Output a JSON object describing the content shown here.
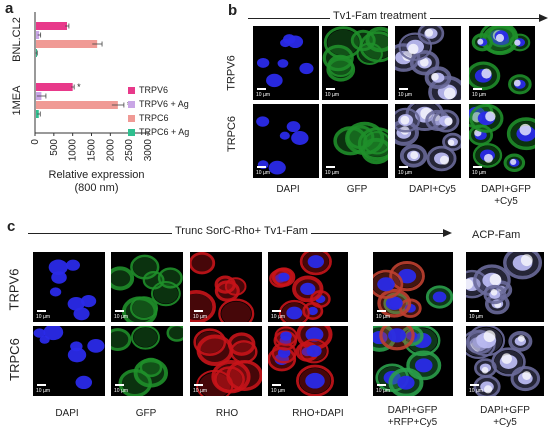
{
  "panels": {
    "a": "a",
    "b": "b",
    "c": "c"
  },
  "panel_b": {
    "arrow_text": "Tv1-Fam treatment",
    "rows": [
      "TRPV6",
      "TRPC6"
    ],
    "columns": [
      "DAPI",
      "GFP",
      "DAPI+Cy5",
      "DAPI+GFP\n+Cy5"
    ],
    "scale_text": "10 µm"
  },
  "panel_c": {
    "arrow_text": "Trunc SorC-Rho+ Tv1-Fam",
    "side_title": "ACP-Fam",
    "rows": [
      "TRPV6",
      "TRPC6"
    ],
    "columns": [
      "DAPI",
      "GFP",
      "RHO",
      "RHO+DAPI",
      "DAPI+GFP\n+RFP+Cy5",
      "DAPI+GFP\n+Cy5"
    ],
    "scale_text": "10 µm"
  },
  "colors": {
    "TRPV6": "#e8398a",
    "TRPV6 + Ag": "#c9a6e6",
    "TRPC6": "#f09a95",
    "TRPC6 + Ag": "#2fbf8f"
  },
  "chart_data": {
    "type": "bar",
    "orientation": "horizontal",
    "groups": [
      "BNL.CL2",
      "1MEA"
    ],
    "series": [
      {
        "name": "TRPV6",
        "values": [
          850,
          1000
        ]
      },
      {
        "name": "TRPV6 + Ag",
        "values": [
          110,
          170
        ]
      },
      {
        "name": "TRPC6",
        "values": [
          1650,
          2200
        ]
      },
      {
        "name": "TRPC6 + Ag",
        "values": [
          40,
          100
        ]
      }
    ],
    "error": [
      [
        50,
        40,
        130,
        20
      ],
      [
        40,
        120,
        160,
        40
      ]
    ],
    "significance": [
      [
        "",
        "",
        "",
        ""
      ],
      [
        "*",
        "",
        "*",
        ""
      ]
    ],
    "xticks": [
      0,
      500,
      1000,
      1500,
      2000,
      2500,
      3000
    ],
    "xlim": [
      0,
      3000
    ],
    "xlabel": "Relative expression\n(800 nm)",
    "ylabel": ""
  }
}
